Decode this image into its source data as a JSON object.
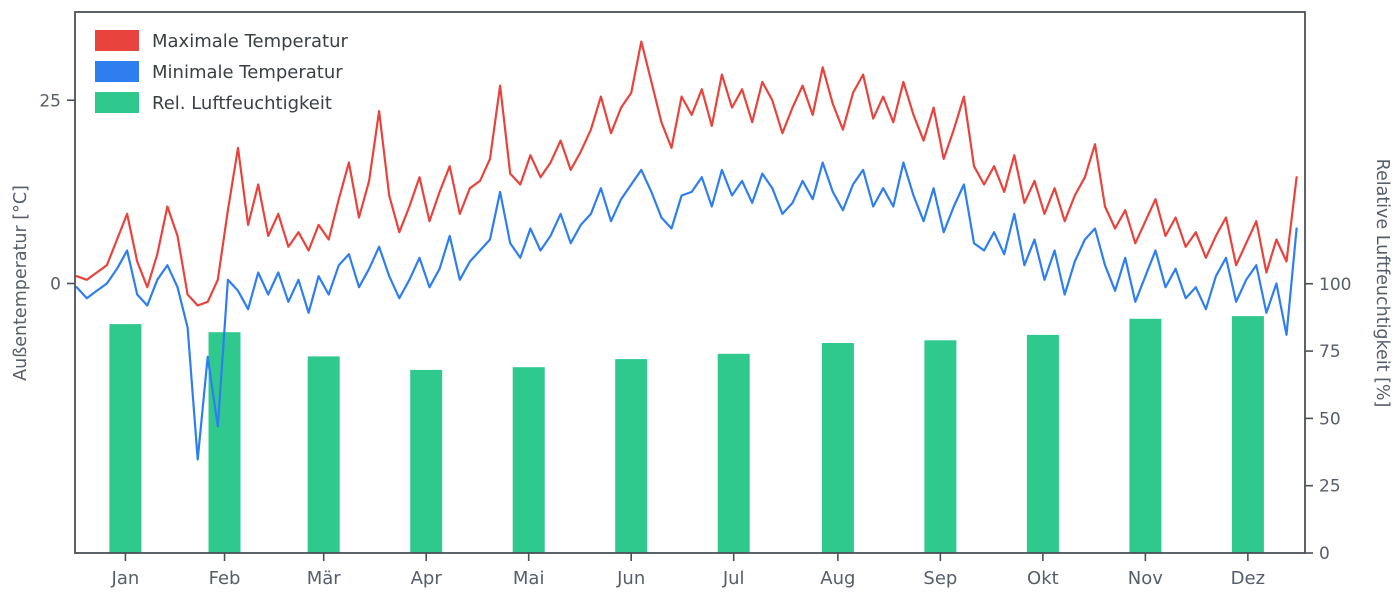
{
  "chart_data": {
    "type": "line+bar",
    "title": "",
    "left_axis": {
      "label": "Außentemperatur [°C]",
      "ticks": [
        25,
        0
      ],
      "range": [
        -37,
        37
      ]
    },
    "right_axis": {
      "label": "Relative Luftfeuchtigkeit [%]",
      "ticks": [
        100,
        75,
        50,
        25,
        0
      ],
      "range": [
        0,
        201
      ]
    },
    "x_axis": {
      "tick_labels": [
        "Jan",
        "Feb",
        "Mär",
        "Apr",
        "Mai",
        "Jun",
        "Jul",
        "Aug",
        "Sep",
        "Okt",
        "Nov",
        "Dez"
      ]
    },
    "legend": [
      {
        "label": "Maximale Temperatur",
        "color": "#e8433d",
        "series": "max_temp"
      },
      {
        "label": "Minimale Temperatur",
        "color": "#2e7ef0",
        "series": "min_temp"
      },
      {
        "label": "Rel. Luftfeuchtigkeit",
        "color": "#2fc98e",
        "series": "humidity"
      }
    ],
    "colors": {
      "max_temp": "#e8433d",
      "min_temp": "#2e7ef0",
      "humidity": "#2fc98e",
      "spine": "#4a5058",
      "tick_text": "#565e6a"
    },
    "series": {
      "x_day_start": 1,
      "x_day_step": 3,
      "max_temp": [
        1,
        0.5,
        1.5,
        2.5,
        6,
        9.5,
        3,
        -0.5,
        4,
        10.5,
        6.5,
        -1.5,
        -3,
        -2.5,
        0.5,
        10,
        18.5,
        8,
        13.5,
        6.5,
        9.5,
        5,
        7,
        4.5,
        8,
        6,
        11.5,
        16.5,
        9,
        14,
        23.5,
        12,
        7,
        10.5,
        14.5,
        8.5,
        12.5,
        16,
        9.5,
        13,
        14,
        17,
        27,
        15,
        13.5,
        17.5,
        14.5,
        16.5,
        19.5,
        15.5,
        18,
        21,
        25.5,
        20.5,
        24,
        26,
        33,
        27.5,
        22,
        18.5,
        25.5,
        23,
        26.5,
        21.5,
        28.5,
        24,
        26.5,
        22,
        27.5,
        25,
        20.5,
        24,
        27,
        23,
        29.5,
        24.5,
        21,
        26,
        28.5,
        22.5,
        25.5,
        22,
        27.5,
        23,
        19.5,
        24,
        17,
        21,
        25.5,
        16,
        13.5,
        16,
        12.5,
        17.5,
        11,
        14,
        9.5,
        13,
        8.5,
        12,
        14.5,
        19,
        10.5,
        7.5,
        10,
        5.5,
        8.5,
        11.5,
        6.5,
        9,
        5,
        7,
        3.5,
        6.5,
        9,
        2.5,
        5.5,
        8.5,
        1.5,
        6,
        3,
        14.5
      ],
      "min_temp": [
        -0.5,
        -2,
        -1,
        0,
        2,
        4.5,
        -1.5,
        -3,
        0.5,
        2.5,
        -0.5,
        -6,
        -24,
        -10,
        -19.5,
        0.5,
        -1,
        -3.5,
        1.5,
        -1.5,
        1.5,
        -2.5,
        0.5,
        -4,
        1,
        -1.5,
        2.5,
        4,
        -0.5,
        2,
        5,
        1,
        -2,
        0.5,
        3.5,
        -0.5,
        2,
        6.5,
        0.5,
        3,
        4.5,
        6,
        12.5,
        5.5,
        3.5,
        7.5,
        4.5,
        6.5,
        9.5,
        5.5,
        8,
        9.5,
        13,
        8.5,
        11.5,
        13.5,
        15.5,
        12.5,
        9,
        7.5,
        12,
        12.5,
        14.5,
        10.5,
        15.5,
        12,
        14,
        11,
        15,
        13,
        9.5,
        11,
        14,
        11.5,
        16.5,
        12.5,
        10,
        13.5,
        15.5,
        10.5,
        13,
        10.5,
        16.5,
        12,
        8.5,
        13,
        7,
        10.5,
        13.5,
        5.5,
        4.5,
        7,
        4,
        9.5,
        2.5,
        6,
        0.5,
        4.5,
        -1.5,
        3,
        6,
        7.5,
        2.5,
        -1,
        3.5,
        -2.5,
        1,
        4.5,
        -0.5,
        2,
        -2,
        -0.5,
        -3.5,
        1,
        3.5,
        -2.5,
        0.5,
        2.5,
        -4,
        0,
        -7,
        7.5
      ]
    },
    "humidity": {
      "unit": "%",
      "monthly_values": [
        85,
        82,
        73,
        68,
        69,
        72,
        74,
        78,
        79,
        81,
        87,
        88
      ]
    }
  }
}
